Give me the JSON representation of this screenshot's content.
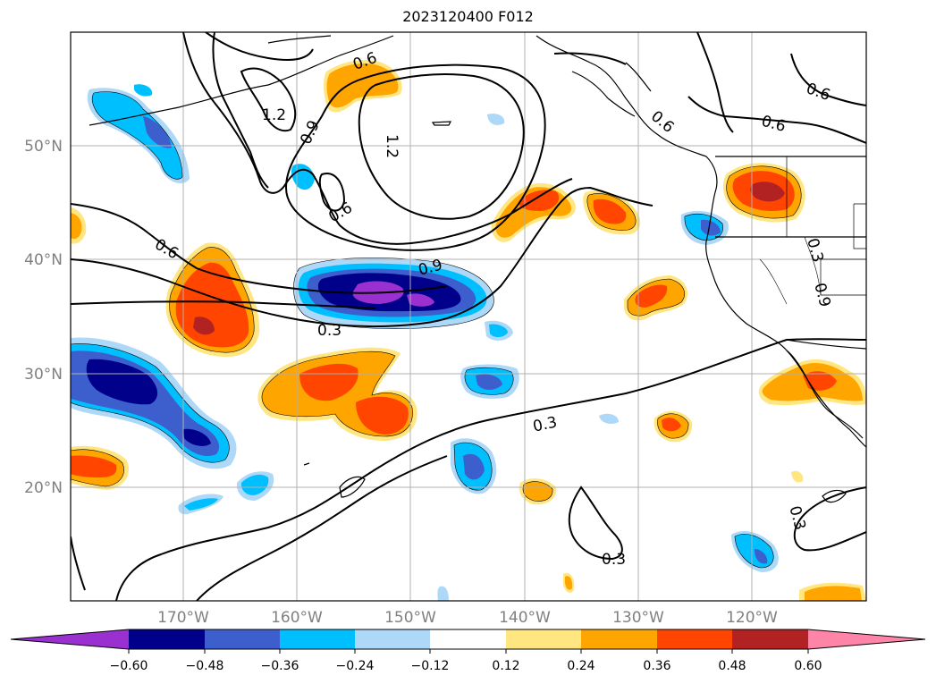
{
  "title": "2023120400 F012",
  "lat_labels": [
    "50°N",
    "40°N",
    "30°N",
    "20°N"
  ],
  "lon_labels": [
    "170°W",
    "160°W",
    "150°W",
    "140°W",
    "130°W",
    "120°W"
  ],
  "contour_labels": [
    "1.2",
    "1.2",
    "0.9",
    "0.9",
    "0.6",
    "0.6",
    "0.6",
    "0.6",
    "0.3",
    "0.3",
    "0.3",
    "0.3",
    "0.3",
    "0.9",
    "0.6",
    "0.6"
  ],
  "colorbar": {
    "ticks": [
      "−0.60",
      "−0.48",
      "−0.36",
      "−0.24",
      "−0.12",
      "0.12",
      "0.24",
      "0.36",
      "0.48",
      "0.60"
    ],
    "colors": {
      "lt_-0.60": "#9b30d0",
      "-0.60_-0.48": "#00008b",
      "-0.48_-0.36": "#3c5fcd",
      "-0.36_-0.24": "#00bfff",
      "-0.24_-0.12": "#add8f7",
      "-0.12_0.12": "#ffffff",
      "0.12_0.24": "#ffe680",
      "0.24_0.36": "#ffa500",
      "0.36_0.48": "#ff4500",
      "0.48_0.60": "#b22222",
      "gt_0.60": "#ff85a8"
    }
  }
}
